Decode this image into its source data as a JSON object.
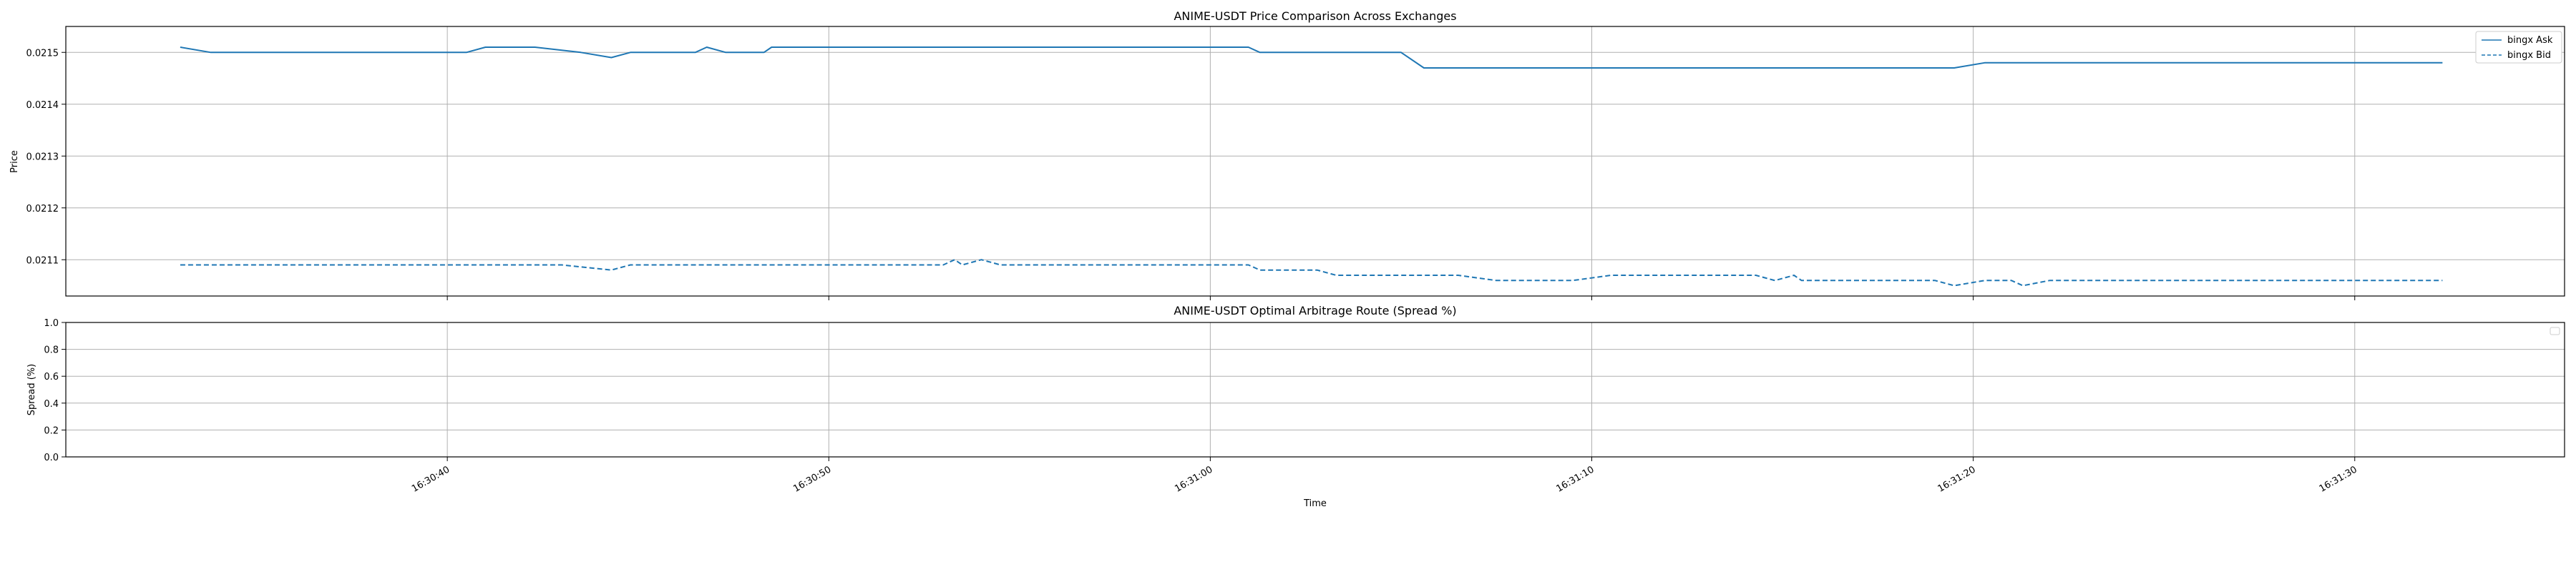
{
  "chart_data": [
    {
      "type": "line",
      "title": "ANIME-USDT Price Comparison Across Exchanges",
      "xlabel": "",
      "ylabel": "Price",
      "ylim": [
        0.02103,
        0.02155
      ],
      "yticks": [
        "0.0211",
        "0.0212",
        "0.0213",
        "0.0214",
        "0.0215"
      ],
      "xticks": [
        "16:30:40",
        "16:30:50",
        "16:31:00",
        "16:31:10",
        "16:31:20",
        "16:31:30"
      ],
      "xrange": [
        "16:30:30",
        "16:31:35.5"
      ],
      "grid": true,
      "legend": "top-right",
      "series": [
        {
          "name": "bingx Ask",
          "style": "solid",
          "color": "#1f77b4",
          "points": [
            [
              "16:30:33.0",
              0.02151
            ],
            [
              "16:30:33.8",
              0.0215
            ],
            [
              "16:30:34.5",
              0.0215
            ],
            [
              "16:30:40.5",
              0.0215
            ],
            [
              "16:30:41.0",
              0.02151
            ],
            [
              "16:30:42.3",
              0.02151
            ],
            [
              "16:30:43.5",
              0.0215
            ],
            [
              "16:30:44.3",
              0.02149
            ],
            [
              "16:30:44.8",
              0.0215
            ],
            [
              "16:30:46.5",
              0.0215
            ],
            [
              "16:30:46.8",
              0.02151
            ],
            [
              "16:30:47.3",
              0.0215
            ],
            [
              "16:30:48.3",
              0.0215
            ],
            [
              "16:30:48.5",
              0.02151
            ],
            [
              "16:31:01.0",
              0.02151
            ],
            [
              "16:31:01.3",
              0.0215
            ],
            [
              "16:31:05.0",
              0.0215
            ],
            [
              "16:31:05.6",
              0.02147
            ],
            [
              "16:31:19.5",
              0.02147
            ],
            [
              "16:31:20.3",
              0.02148
            ],
            [
              "16:31:32.3",
              0.02148
            ]
          ]
        },
        {
          "name": "bingx Bid",
          "style": "dashed",
          "color": "#1f77b4",
          "points": [
            [
              "16:30:33.0",
              0.02109
            ],
            [
              "16:30:43.0",
              0.02109
            ],
            [
              "16:30:44.3",
              0.02108
            ],
            [
              "16:30:44.8",
              0.02109
            ],
            [
              "16:30:53.0",
              0.02109
            ],
            [
              "16:30:53.3",
              0.0211
            ],
            [
              "16:30:53.5",
              0.02109
            ],
            [
              "16:30:54.0",
              0.0211
            ],
            [
              "16:30:54.5",
              0.02109
            ],
            [
              "16:31:01.0",
              0.02109
            ],
            [
              "16:31:01.3",
              0.02108
            ],
            [
              "16:31:02.8",
              0.02108
            ],
            [
              "16:31:03.3",
              0.02107
            ],
            [
              "16:31:06.5",
              0.02107
            ],
            [
              "16:31:07.5",
              0.02106
            ],
            [
              "16:31:09.5",
              0.02106
            ],
            [
              "16:31:10.5",
              0.02107
            ],
            [
              "16:31:14.3",
              0.02107
            ],
            [
              "16:31:14.8",
              0.02106
            ],
            [
              "16:31:15.3",
              0.02107
            ],
            [
              "16:31:15.5",
              0.02106
            ],
            [
              "16:31:19.0",
              0.02106
            ],
            [
              "16:31:19.5",
              0.02105
            ],
            [
              "16:31:20.3",
              0.02106
            ],
            [
              "16:31:21.0",
              0.02106
            ],
            [
              "16:31:21.3",
              0.02105
            ],
            [
              "16:31:22.0",
              0.02106
            ],
            [
              "16:31:32.3",
              0.02106
            ]
          ]
        }
      ]
    },
    {
      "type": "line",
      "title": "ANIME-USDT Optimal Arbitrage Route (Spread %)",
      "xlabel": "Time",
      "ylabel": "Spread (%)",
      "ylim": [
        0,
        1
      ],
      "yticks": [
        "0.0",
        "0.2",
        "0.4",
        "0.6",
        "0.8",
        "1.0"
      ],
      "xticks": [
        "16:30:40",
        "16:30:50",
        "16:31:00",
        "16:31:10",
        "16:31:20",
        "16:31:30"
      ],
      "xrange": [
        "16:30:30",
        "16:31:35.5"
      ],
      "grid": true,
      "legend": "top-right",
      "series": []
    }
  ]
}
